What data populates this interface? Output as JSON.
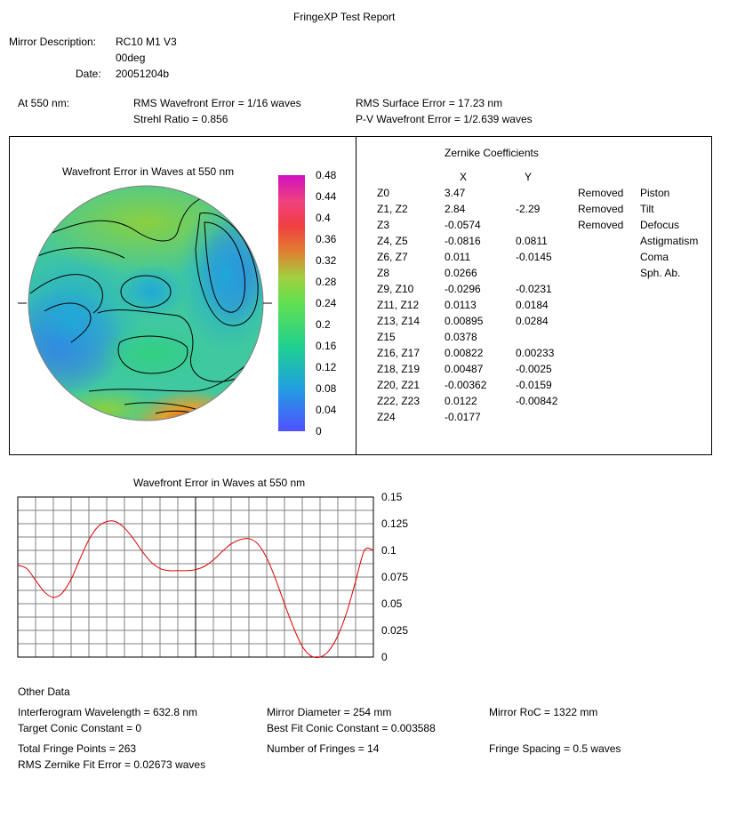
{
  "report_title": "FringeXP Test Report",
  "header": {
    "mirror_description_label": "Mirror Description:",
    "mirror_description_line1": "RC10 M1 V3",
    "mirror_description_line2": "00deg",
    "date_label": "Date:",
    "date_value": "20051204b"
  },
  "summary": {
    "wavelength_label": "At 550 nm:",
    "rms_wavefront": "RMS Wavefront Error = 1/16 waves",
    "strehl": "Strehl Ratio = 0.856",
    "rms_surface": "RMS Surface Error = 17.23 nm",
    "pv_wavefront": "P-V Wavefront Error = 1/2.639 waves"
  },
  "wavefront_map": {
    "title": "Wavefront Error in Waves at 550 nm",
    "colorbar_labels": [
      "0.48",
      "0.44",
      "0.4",
      "0.36",
      "0.32",
      "0.28",
      "0.24",
      "0.2",
      "0.16",
      "0.12",
      "0.08",
      "0.04",
      "0"
    ]
  },
  "zernike": {
    "title": "Zernike Coefficients",
    "col_x": "X",
    "col_y": "Y",
    "rows": [
      {
        "term": "Z0",
        "x": "3.47",
        "y": "",
        "status": "Removed",
        "name": "Piston"
      },
      {
        "term": "Z1, Z2",
        "x": "2.84",
        "y": "-2.29",
        "status": "Removed",
        "name": "Tilt"
      },
      {
        "term": "Z3",
        "x": "-0.0574",
        "y": "",
        "status": "Removed",
        "name": "Defocus"
      },
      {
        "term": "Z4, Z5",
        "x": "-0.0816",
        "y": "0.0811",
        "status": "",
        "name": "Astigmatism"
      },
      {
        "term": "Z6, Z7",
        "x": "0.011",
        "y": "-0.0145",
        "status": "",
        "name": "Coma"
      },
      {
        "term": "Z8",
        "x": "0.0266",
        "y": "",
        "status": "",
        "name": "Sph. Ab."
      },
      {
        "term": "Z9, Z10",
        "x": "-0.0296",
        "y": "-0.0231",
        "status": "",
        "name": ""
      },
      {
        "term": "Z11, Z12",
        "x": "0.0113",
        "y": "0.0184",
        "status": "",
        "name": ""
      },
      {
        "term": "Z13, Z14",
        "x": "0.00895",
        "y": "0.0284",
        "status": "",
        "name": ""
      },
      {
        "term": "Z15",
        "x": "0.0378",
        "y": "",
        "status": "",
        "name": ""
      },
      {
        "term": "Z16, Z17",
        "x": "0.00822",
        "y": "0.00233",
        "status": "",
        "name": ""
      },
      {
        "term": "Z18, Z19",
        "x": "0.00487",
        "y": "-0.0025",
        "status": "",
        "name": ""
      },
      {
        "term": "Z20, Z21",
        "x": "-0.00362",
        "y": "-0.0159",
        "status": "",
        "name": ""
      },
      {
        "term": "Z22, Z23",
        "x": "0.0122",
        "y": "-0.00842",
        "status": "",
        "name": ""
      },
      {
        "term": "Z24",
        "x": "-0.0177",
        "y": "",
        "status": "",
        "name": ""
      }
    ]
  },
  "profile_chart": {
    "title": "Wavefront Error in Waves at 550 nm",
    "ytick_labels": [
      "0.15",
      "0.125",
      "0.1",
      "0.075",
      "0.05",
      "0.025",
      "0"
    ],
    "ylim": [
      0,
      0.15
    ],
    "xlim": [
      -1,
      1
    ],
    "line_color": "#e00000",
    "grid_color": "#808080",
    "x": [
      -1.0,
      -0.95,
      -0.9,
      -0.85,
      -0.8,
      -0.75,
      -0.7,
      -0.65,
      -0.6,
      -0.55,
      -0.5,
      -0.45,
      -0.4,
      -0.35,
      -0.3,
      -0.25,
      -0.2,
      -0.15,
      -0.1,
      -0.05,
      0.0,
      0.05,
      0.1,
      0.15,
      0.2,
      0.25,
      0.3,
      0.35,
      0.4,
      0.45,
      0.5,
      0.55,
      0.6,
      0.65,
      0.7,
      0.75,
      0.8,
      0.85,
      0.9,
      0.95,
      1.0
    ],
    "y": [
      0.086,
      0.083,
      0.072,
      0.061,
      0.056,
      0.06,
      0.073,
      0.092,
      0.11,
      0.122,
      0.127,
      0.127,
      0.121,
      0.111,
      0.099,
      0.089,
      0.083,
      0.081,
      0.081,
      0.081,
      0.082,
      0.085,
      0.091,
      0.099,
      0.106,
      0.11,
      0.111,
      0.106,
      0.093,
      0.073,
      0.05,
      0.028,
      0.01,
      0.001,
      0.0,
      0.006,
      0.02,
      0.042,
      0.071,
      0.1,
      0.1
    ]
  },
  "other_data": {
    "title": "Other Data",
    "interferogram_wavelength": "Interferogram Wavelength = 632.8 nm",
    "mirror_diameter": "Mirror Diameter = 254 mm",
    "mirror_roc": "Mirror RoC = 1322 mm",
    "target_conic": "Target Conic Constant = 0",
    "best_fit_conic": "Best Fit Conic Constant = 0.003588",
    "total_fringe_points": "Total Fringe Points = 263",
    "number_of_fringes": "Number of Fringes = 14",
    "fringe_spacing": "Fringe Spacing = 0.5 waves",
    "rms_zernike_fit": "RMS Zernike Fit Error = 0.02673 waves"
  }
}
